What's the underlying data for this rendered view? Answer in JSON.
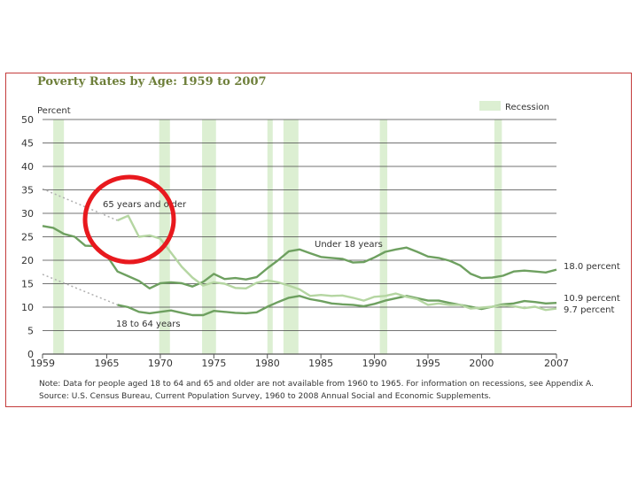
{
  "chart_data": {
    "type": "line",
    "title": "Poverty Rates by Age:  1959 to 2007",
    "ylabel": "Percent",
    "ylim": [
      0,
      50
    ],
    "yticks": [
      "0",
      "5",
      "10",
      "15",
      "20",
      "25",
      "30",
      "35",
      "40",
      "45",
      "50"
    ],
    "xlim": [
      1959,
      2007
    ],
    "xticks": [
      "1959",
      "1965",
      "1970",
      "1975",
      "1980",
      "1985",
      "1990",
      "1995",
      "2000",
      "2007"
    ],
    "legend": "Recession",
    "recessions": [
      [
        1960,
        1961
      ],
      [
        1969.9,
        1970.9
      ],
      [
        1973.9,
        1975.2
      ],
      [
        1980,
        1980.5
      ],
      [
        1981.5,
        1982.9
      ],
      [
        1990.5,
        1991.2
      ],
      [
        2001.2,
        2001.9
      ]
    ],
    "series": [
      {
        "name": "Under 18 years",
        "end_label": "18.0 percent",
        "color": "#6ea060",
        "x": [
          1959,
          1960,
          1961,
          1962,
          1963,
          1964,
          1965,
          1966,
          1967,
          1968,
          1969,
          1970,
          1971,
          1972,
          1973,
          1974,
          1975,
          1976,
          1977,
          1978,
          1979,
          1980,
          1981,
          1982,
          1983,
          1984,
          1985,
          1986,
          1987,
          1988,
          1989,
          1990,
          1991,
          1992,
          1993,
          1994,
          1995,
          1996,
          1997,
          1998,
          1999,
          2000,
          2001,
          2002,
          2003,
          2004,
          2005,
          2006,
          2007
        ],
        "values": [
          27.3,
          26.9,
          25.6,
          25.0,
          23.1,
          23.0,
          21.0,
          17.6,
          16.6,
          15.6,
          14.0,
          15.1,
          15.3,
          15.1,
          14.4,
          15.4,
          17.1,
          16.0,
          16.2,
          15.9,
          16.4,
          18.3,
          20.0,
          21.9,
          22.3,
          21.5,
          20.7,
          20.5,
          20.3,
          19.5,
          19.6,
          20.6,
          21.8,
          22.3,
          22.7,
          21.8,
          20.8,
          20.5,
          19.9,
          18.9,
          17.1,
          16.2,
          16.3,
          16.7,
          17.6,
          17.8,
          17.6,
          17.4,
          18.0
        ]
      },
      {
        "name": "18 to 64 years",
        "end_label": "10.9 percent",
        "color": "#6ea060",
        "x": [
          1966,
          1967,
          1968,
          1969,
          1970,
          1971,
          1972,
          1973,
          1974,
          1975,
          1976,
          1977,
          1978,
          1979,
          1980,
          1981,
          1982,
          1983,
          1984,
          1985,
          1986,
          1987,
          1988,
          1989,
          1990,
          1991,
          1992,
          1993,
          1994,
          1995,
          1996,
          1997,
          1998,
          1999,
          2000,
          2001,
          2002,
          2003,
          2004,
          2005,
          2006,
          2007
        ],
        "values": [
          10.5,
          10.0,
          9.0,
          8.7,
          9.0,
          9.3,
          8.8,
          8.3,
          8.3,
          9.2,
          9.0,
          8.8,
          8.7,
          8.9,
          10.1,
          11.1,
          12.0,
          12.4,
          11.7,
          11.3,
          10.8,
          10.6,
          10.5,
          10.2,
          10.7,
          11.4,
          11.9,
          12.4,
          11.9,
          11.4,
          11.4,
          10.9,
          10.5,
          10.1,
          9.6,
          10.1,
          10.6,
          10.8,
          11.3,
          11.1,
          10.8,
          10.9
        ]
      },
      {
        "name": "65 years and older",
        "end_label": "9.7 percent",
        "color": "#b5d6a2",
        "x": [
          1966,
          1967,
          1968,
          1969,
          1970,
          1971,
          1972,
          1973,
          1974,
          1975,
          1976,
          1977,
          1978,
          1979,
          1980,
          1981,
          1982,
          1983,
          1984,
          1985,
          1986,
          1987,
          1988,
          1989,
          1990,
          1991,
          1992,
          1993,
          1994,
          1995,
          1996,
          1997,
          1998,
          1999,
          2000,
          2001,
          2002,
          2003,
          2004,
          2005,
          2006,
          2007
        ],
        "values": [
          28.5,
          29.5,
          25.0,
          25.3,
          24.6,
          21.6,
          18.6,
          16.3,
          14.6,
          15.3,
          15.0,
          14.1,
          14.0,
          15.2,
          15.7,
          15.3,
          14.6,
          13.8,
          12.4,
          12.6,
          12.4,
          12.5,
          12.0,
          11.4,
          12.2,
          12.4,
          12.9,
          12.2,
          11.7,
          10.5,
          10.8,
          10.5,
          10.5,
          9.7,
          9.9,
          10.1,
          10.4,
          10.2,
          9.8,
          10.1,
          9.4,
          9.7
        ]
      }
    ],
    "projection_segments": [
      {
        "series": "65 years and older",
        "x": [
          1959,
          1966
        ],
        "values": [
          35.2,
          28.5
        ]
      },
      {
        "series": "18 to 64 years",
        "x": [
          1959,
          1966
        ],
        "values": [
          17.0,
          10.5
        ]
      }
    ],
    "notes": [
      "Note:  Data for people aged 18 to 64 and 65 and older are not available from 1960 to 1965. For information on recessions, see Appendix A.",
      "Source:  U.S. Census Bureau, Current Population Survey, 1960 to 2008 Annual Social and Economic Supplements."
    ],
    "grid": true,
    "annotation_color": "#e8191e"
  }
}
